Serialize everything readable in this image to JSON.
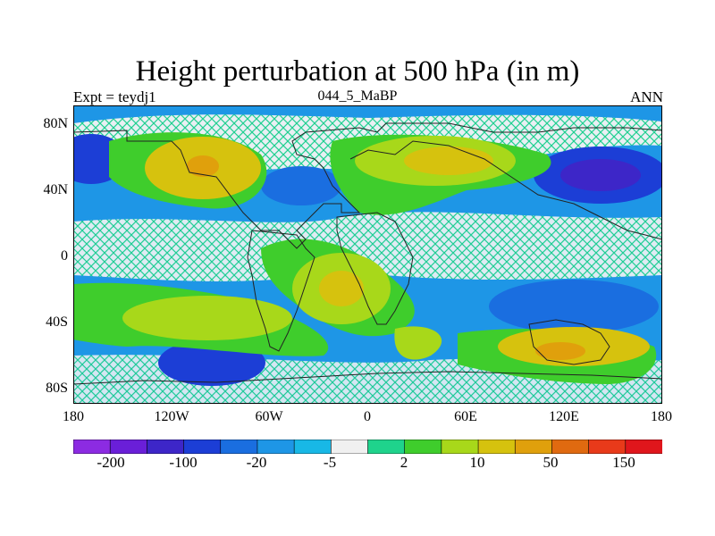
{
  "title": "Height perturbation at 500 hPa (in m)",
  "left_subtitle": "Expt = teydj1",
  "center_subtitle": "044_5_MaBP",
  "right_subtitle": "ANN",
  "lat_labels": [
    "80N",
    "40N",
    "0",
    "40S",
    "80S"
  ],
  "lon_labels": [
    "180",
    "120W",
    "60W",
    "0",
    "60E",
    "120E",
    "180"
  ],
  "colorbar": {
    "colors": [
      "#8c2be2",
      "#6a1fd8",
      "#3d26c8",
      "#1c3ed6",
      "#1a6ee0",
      "#1e96e6",
      "#18b8e6",
      "#f0f0f0",
      "#1fd38c",
      "#3fcd2c",
      "#a8d81a",
      "#d6c20e",
      "#e0a00c",
      "#e06a10",
      "#e83a1a",
      "#e0161c"
    ],
    "labels": [
      "-200",
      "-100",
      "-20",
      "-5",
      "2",
      "10",
      "50",
      "150"
    ]
  },
  "map_colors": {
    "background": "#1e96e6",
    "hatch": "#ffffff",
    "coast": "#222222"
  }
}
